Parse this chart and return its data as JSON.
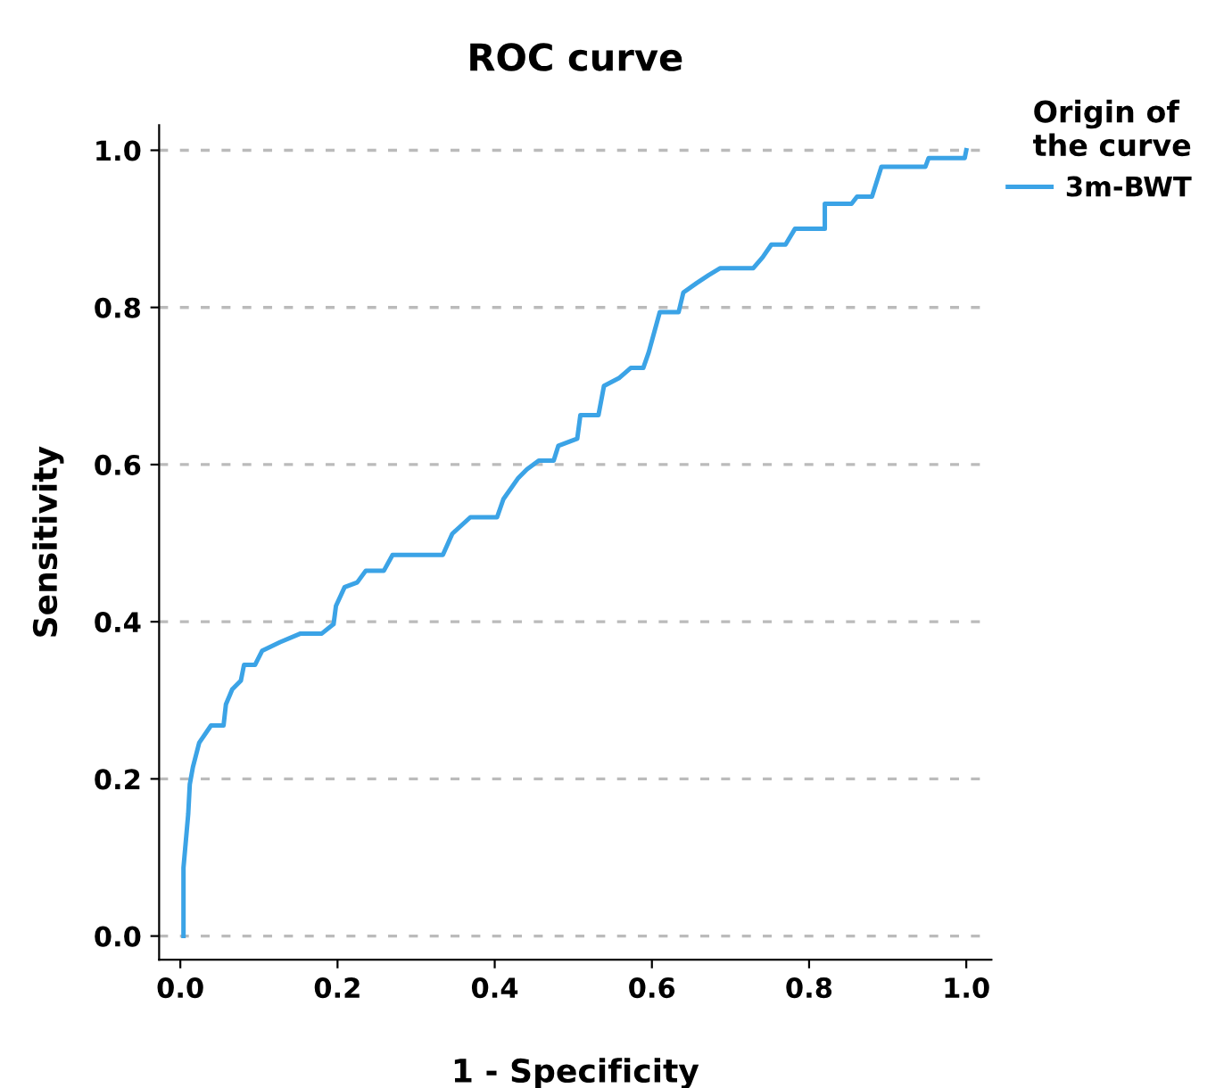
{
  "chart_data": {
    "type": "line",
    "title": "ROC curve",
    "xlabel": "1 - Specificity",
    "ylabel": "Sensitivity",
    "legend_title": "Origin of the curve",
    "legend": "right",
    "grid": "y",
    "line_style": "solid",
    "marker": "none",
    "xlim": [
      -0.027,
      1.032
    ],
    "ylim": [
      -0.03,
      1.032
    ],
    "xticks": [
      {
        "value": 0,
        "label": "0.0"
      },
      {
        "value": 0.2,
        "label": "0.2"
      },
      {
        "value": 0.4,
        "label": "0.4"
      },
      {
        "value": 0.6,
        "label": "0.6"
      },
      {
        "value": 0.8,
        "label": "0.8"
      },
      {
        "value": 1,
        "label": "1.0"
      }
    ],
    "yticks": [
      {
        "value": 0,
        "label": "0.0"
      },
      {
        "value": 0.2,
        "label": "0.2"
      },
      {
        "value": 0.4,
        "label": "0.4"
      },
      {
        "value": 0.6,
        "label": "0.6"
      },
      {
        "value": 0.8,
        "label": "0.8"
      },
      {
        "value": 1,
        "label": "1.0"
      }
    ],
    "series": [
      {
        "name": "3m-BWT",
        "color": "#3ba3e6",
        "x": [
          0.004,
          0.004,
          0.01,
          0.012,
          0.016,
          0.024,
          0.039,
          0.055,
          0.058,
          0.066,
          0.077,
          0.081,
          0.095,
          0.104,
          0.127,
          0.153,
          0.18,
          0.195,
          0.198,
          0.209,
          0.225,
          0.236,
          0.259,
          0.27,
          0.334,
          0.346,
          0.369,
          0.403,
          0.411,
          0.43,
          0.441,
          0.456,
          0.475,
          0.481,
          0.505,
          0.509,
          0.532,
          0.539,
          0.558,
          0.573,
          0.589,
          0.596,
          0.61,
          0.634,
          0.64,
          0.657,
          0.672,
          0.687,
          0.729,
          0.741,
          0.752,
          0.77,
          0.782,
          0.82,
          0.82,
          0.854,
          0.861,
          0.88,
          0.892,
          0.948,
          0.952,
          0.998,
          1.0
        ],
        "values": [
          0,
          0.087,
          0.155,
          0.193,
          0.215,
          0.246,
          0.268,
          0.268,
          0.295,
          0.314,
          0.325,
          0.345,
          0.345,
          0.363,
          0.374,
          0.385,
          0.385,
          0.397,
          0.42,
          0.444,
          0.45,
          0.465,
          0.465,
          0.485,
          0.485,
          0.512,
          0.533,
          0.533,
          0.556,
          0.583,
          0.594,
          0.605,
          0.605,
          0.624,
          0.633,
          0.663,
          0.663,
          0.7,
          0.71,
          0.723,
          0.723,
          0.743,
          0.794,
          0.794,
          0.819,
          0.831,
          0.841,
          0.85,
          0.85,
          0.864,
          0.88,
          0.88,
          0.9,
          0.9,
          0.932,
          0.932,
          0.941,
          0.941,
          0.979,
          0.979,
          0.99,
          0.99,
          1.0
        ]
      }
    ]
  }
}
